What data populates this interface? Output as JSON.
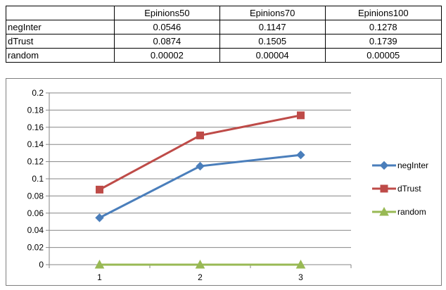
{
  "table": {
    "header": [
      "",
      "Epinions50",
      "Epinions70",
      "Epinions100"
    ],
    "rows": [
      {
        "label": "negInter",
        "values": [
          "0.0546",
          "0.1147",
          "0.1278"
        ]
      },
      {
        "label": "dTrust",
        "values": [
          "0.0874",
          "0.1505",
          "0.1739"
        ]
      },
      {
        "label": "random",
        "values": [
          "0.00002",
          "0.00004",
          "0.00005"
        ]
      }
    ]
  },
  "chart_data": {
    "type": "line",
    "categories": [
      "1",
      "2",
      "3"
    ],
    "ylim": [
      0,
      0.2
    ],
    "yticks": [
      "0",
      "0.02",
      "0.04",
      "0.06",
      "0.08",
      "0.1",
      "0.12",
      "0.14",
      "0.16",
      "0.18",
      "0.2"
    ],
    "grid": true,
    "legend_position": "right",
    "series": [
      {
        "name": "negInter",
        "values": [
          0.0546,
          0.1147,
          0.1278
        ],
        "color": "#4a7ebb",
        "marker": "diamond"
      },
      {
        "name": "dTrust",
        "values": [
          0.0874,
          0.1505,
          0.1739
        ],
        "color": "#be4b48",
        "marker": "square"
      },
      {
        "name": "random",
        "values": [
          2e-05,
          4e-05,
          5e-05
        ],
        "color": "#98b954",
        "marker": "triangle"
      }
    ]
  }
}
